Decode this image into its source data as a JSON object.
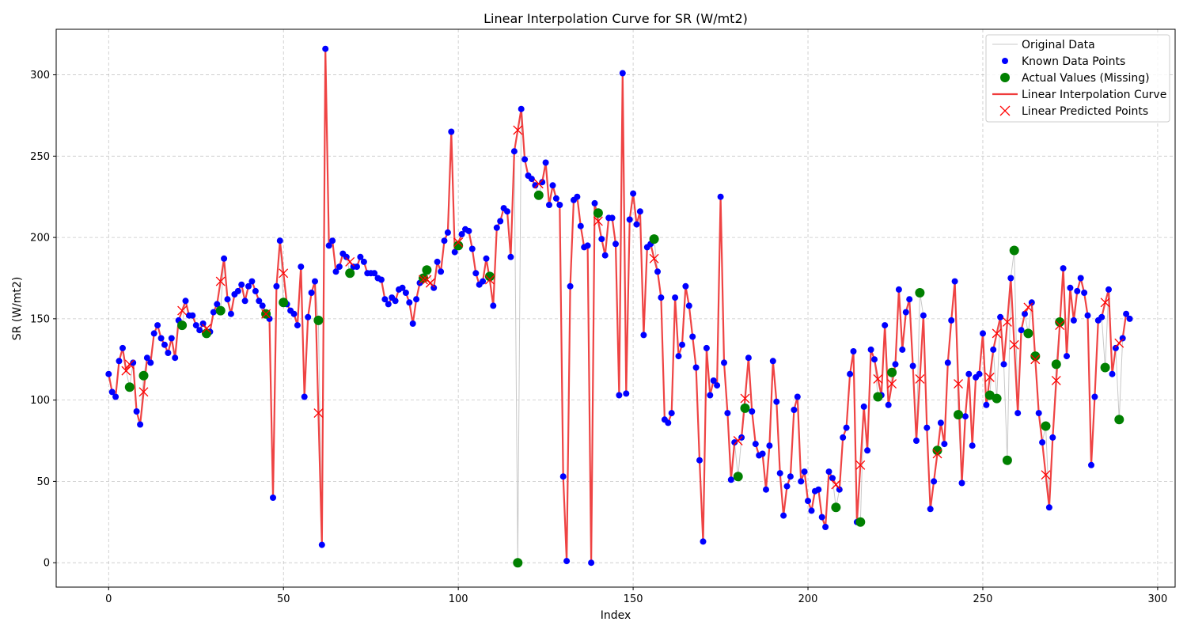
{
  "chart_data": {
    "type": "line",
    "title": "Linear Interpolation Curve for SR (W/mt2)",
    "xlabel": "Index",
    "ylabel": "SR (W/mt2)",
    "xlim": [
      -15,
      305
    ],
    "ylim": [
      -15,
      328
    ],
    "xticks": [
      0,
      50,
      100,
      150,
      200,
      250,
      300
    ],
    "yticks": [
      0,
      50,
      100,
      150,
      200,
      250,
      300
    ],
    "grid": true,
    "legend_position": "top-right",
    "colors": {
      "original": "#c8c8c8",
      "known": "#0000ff",
      "actual": "#008000",
      "interp": "#ef3b3b",
      "predicted": "#ff0000"
    },
    "legend": [
      {
        "label": "Original Data",
        "kind": "line",
        "color": "#c8c8c8"
      },
      {
        "label": "Known Data Points",
        "kind": "dot",
        "color": "#0000ff"
      },
      {
        "label": "Actual Values (Missing)",
        "kind": "bigdot",
        "color": "#008000"
      },
      {
        "label": "Linear Interpolation Curve",
        "kind": "thickline",
        "color": "#ef3b3b"
      },
      {
        "label": "Linear Predicted Points",
        "kind": "cross",
        "color": "#ff0000"
      }
    ],
    "series": [
      {
        "name": "Original Data",
        "values": [
          116,
          105,
          102,
          124,
          132,
          118,
          108,
          123,
          93,
          85,
          115,
          126,
          123,
          141,
          146,
          138,
          134,
          129,
          138,
          126,
          149,
          146,
          161,
          152,
          152,
          146,
          143,
          147,
          141,
          142,
          154,
          159,
          155,
          187,
          162,
          153,
          165,
          167,
          171,
          161,
          170,
          173,
          167,
          161,
          158,
          153,
          150,
          40,
          170,
          198,
          160,
          159,
          155,
          153,
          146,
          182,
          102,
          151,
          166,
          173,
          148,
          11,
          316,
          195,
          198,
          179,
          182,
          190,
          188,
          178,
          182,
          182,
          188,
          185,
          178,
          178,
          178,
          175,
          174,
          162,
          159,
          163,
          161,
          168,
          169,
          166,
          160,
          147,
          162,
          172,
          175,
          180,
          176,
          169,
          185,
          179,
          198,
          203,
          265,
          191,
          195,
          202,
          205,
          204,
          193,
          178,
          171,
          173,
          187,
          176,
          158,
          206,
          210,
          218,
          216,
          188,
          253,
          0,
          279,
          248,
          238,
          236,
          232,
          226,
          234,
          246,
          220,
          232,
          224,
          220,
          53,
          1,
          170,
          223,
          225,
          207,
          194,
          195,
          0,
          221,
          215,
          199,
          189,
          212,
          212,
          196,
          103,
          301,
          104,
          211,
          227,
          208,
          216,
          140,
          194,
          196,
          199,
          179,
          163,
          88,
          86,
          92,
          163,
          127,
          134,
          170,
          158,
          139,
          120,
          63,
          13,
          132,
          103,
          112,
          109,
          225,
          123,
          92,
          51,
          74,
          53,
          77,
          95,
          126,
          93,
          73,
          66,
          67,
          45,
          72,
          124,
          99,
          55,
          29,
          47,
          53,
          94,
          102,
          50,
          56,
          38,
          32,
          44,
          45,
          28,
          22,
          56,
          52,
          34,
          45,
          77,
          83,
          116,
          130,
          25,
          25,
          96,
          69,
          131,
          125,
          102,
          103,
          146,
          97,
          117,
          122,
          168,
          131,
          154,
          162,
          121,
          75,
          166,
          152,
          83,
          33,
          50,
          69,
          86,
          73,
          123,
          149,
          173,
          91,
          49,
          90,
          116,
          72,
          114,
          116,
          141,
          97,
          103,
          131,
          101,
          151,
          122,
          63,
          175,
          192,
          92,
          143,
          153,
          141,
          160,
          127,
          92,
          74,
          84,
          34,
          77,
          122,
          148,
          181,
          127,
          169,
          149,
          167,
          175,
          166,
          152,
          60,
          102,
          149,
          151,
          120,
          168,
          116,
          132,
          88,
          138,
          153,
          150
        ]
      },
      {
        "name": "Actual Values (Missing)",
        "points": [
          [
            6,
            108
          ],
          [
            10,
            115
          ],
          [
            21,
            146
          ],
          [
            28,
            141
          ],
          [
            32,
            155
          ],
          [
            45,
            153
          ],
          [
            50,
            160
          ],
          [
            60,
            149
          ],
          [
            69,
            178
          ],
          [
            90,
            175
          ],
          [
            91,
            180
          ],
          [
            100,
            195
          ],
          [
            109,
            176
          ],
          [
            117,
            0
          ],
          [
            123,
            226
          ],
          [
            140,
            215
          ],
          [
            156,
            199
          ],
          [
            180,
            53
          ],
          [
            182,
            95
          ],
          [
            208,
            34
          ],
          [
            215,
            25
          ],
          [
            220,
            102
          ],
          [
            224,
            117
          ],
          [
            232,
            166
          ],
          [
            237,
            69
          ],
          [
            243,
            91
          ],
          [
            252,
            103
          ],
          [
            254,
            101
          ],
          [
            257,
            63
          ],
          [
            259,
            192
          ],
          [
            263,
            141
          ],
          [
            265,
            127
          ],
          [
            268,
            84
          ],
          [
            271,
            122
          ],
          [
            272,
            148
          ],
          [
            285,
            120
          ],
          [
            289,
            88
          ]
        ]
      },
      {
        "name": "Linear Predicted Points",
        "points": [
          [
            5,
            118
          ],
          [
            6,
            122
          ],
          [
            10,
            105
          ],
          [
            21,
            155
          ],
          [
            28,
            144
          ],
          [
            32,
            173
          ],
          [
            45,
            153
          ],
          [
            50,
            178
          ],
          [
            60,
            92
          ],
          [
            69,
            185
          ],
          [
            90,
            174
          ],
          [
            91,
            174
          ],
          [
            92,
            172
          ],
          [
            100,
            197
          ],
          [
            109,
            174
          ],
          [
            117,
            266
          ],
          [
            123,
            233
          ],
          [
            140,
            210
          ],
          [
            156,
            187
          ],
          [
            180,
            75
          ],
          [
            182,
            101
          ],
          [
            208,
            48
          ],
          [
            215,
            60
          ],
          [
            220,
            113
          ],
          [
            224,
            110
          ],
          [
            232,
            113
          ],
          [
            237,
            67
          ],
          [
            243,
            110
          ],
          [
            252,
            114
          ],
          [
            254,
            141
          ],
          [
            257,
            148
          ],
          [
            259,
            134
          ],
          [
            263,
            157
          ],
          [
            265,
            125
          ],
          [
            268,
            54
          ],
          [
            271,
            112
          ],
          [
            272,
            146
          ],
          [
            285,
            160
          ],
          [
            289,
            135
          ]
        ]
      }
    ]
  }
}
